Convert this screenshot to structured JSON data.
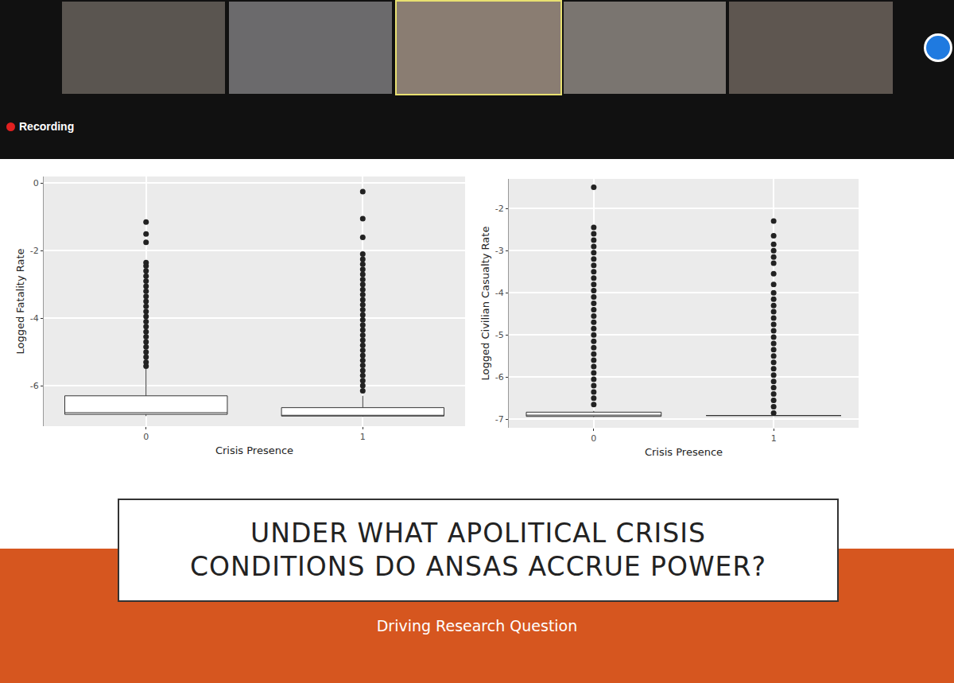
{
  "recording": "Recording",
  "slide": {
    "heading": [
      "UNDER WHAT APOLITICAL CRISIS",
      "CONDITIONS DO ANSAS ACCRUE POWER?"
    ],
    "subheading": "Driving Research Question"
  },
  "chart_data": [
    {
      "type": "box",
      "x_label": "Crisis Presence",
      "y_label": "Logged Fatality Rate",
      "categories": [
        "0",
        "1"
      ],
      "ylim": [
        -7.2,
        0.2
      ],
      "yticks": [
        0,
        -2,
        -4,
        -6
      ],
      "grid": true,
      "boxes": [
        {
          "q1": -6.85,
          "median": -6.8,
          "q3": -6.3,
          "lower": -6.9,
          "upper": -5.45,
          "outliers": [
            -1.15,
            -1.5,
            -1.75,
            -2.35,
            -2.45,
            -2.6,
            -2.75,
            -2.9,
            -3.05,
            -3.2,
            -3.35,
            -3.5,
            -3.65,
            -3.8,
            -3.95,
            -4.1,
            -4.25,
            -4.4,
            -4.55,
            -4.7,
            -4.85,
            -5.0,
            -5.15,
            -5.3,
            -5.42
          ]
        },
        {
          "q1": -6.9,
          "median": -6.88,
          "q3": -6.65,
          "lower": -6.92,
          "upper": -6.3,
          "outliers": [
            -0.25,
            -1.05,
            -1.6,
            -2.1,
            -2.25,
            -2.4,
            -2.55,
            -2.7,
            -2.85,
            -3.0,
            -3.15,
            -3.3,
            -3.45,
            -3.6,
            -3.75,
            -3.9,
            -4.05,
            -4.2,
            -4.35,
            -4.5,
            -4.65,
            -4.8,
            -4.95,
            -5.1,
            -5.25,
            -5.4,
            -5.55,
            -5.7,
            -5.85,
            -6.0,
            -6.15
          ]
        }
      ]
    },
    {
      "type": "box",
      "x_label": "Crisis Presence",
      "y_label": "Logged Civilian Casualty Rate",
      "categories": [
        "0",
        "1"
      ],
      "ylim": [
        -7.2,
        -1.3
      ],
      "yticks": [
        -2,
        -3,
        -4,
        -5,
        -6,
        -7
      ],
      "grid": true,
      "boxes": [
        {
          "q1": -6.93,
          "median": -6.9,
          "q3": -6.83,
          "lower": -6.95,
          "upper": -6.8,
          "outliers": [
            -1.5,
            -2.45,
            -2.6,
            -2.75,
            -2.9,
            -3.05,
            -3.2,
            -3.35,
            -3.5,
            -3.65,
            -3.8,
            -3.95,
            -4.1,
            -4.25,
            -4.4,
            -4.55,
            -4.7,
            -4.85,
            -5.0,
            -5.15,
            -5.3,
            -5.45,
            -5.6,
            -5.75,
            -5.9,
            -6.05,
            -6.2,
            -6.35,
            -6.5,
            -6.65
          ]
        },
        {
          "q1": -6.91,
          "median": -6.91,
          "q3": -6.91,
          "lower": -6.91,
          "upper": -6.91,
          "outliers": [
            -2.3,
            -2.65,
            -2.85,
            -3.0,
            -3.15,
            -3.3,
            -3.55,
            -3.8,
            -4.0,
            -4.15,
            -4.3,
            -4.45,
            -4.6,
            -4.75,
            -4.9,
            -5.05,
            -5.2,
            -5.35,
            -5.5,
            -5.65,
            -5.8,
            -5.95,
            -6.1,
            -6.25,
            -6.4,
            -6.55,
            -6.7,
            -6.85
          ]
        }
      ]
    }
  ]
}
